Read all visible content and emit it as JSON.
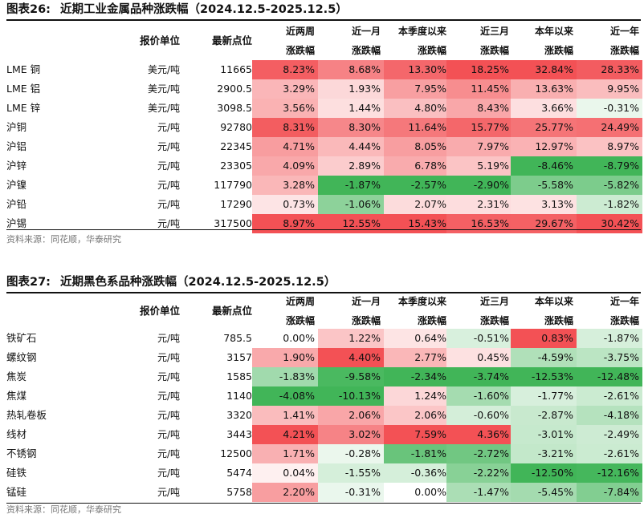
{
  "tables": [
    {
      "label": "图表26:",
      "title": "近期工业金属品种涨跌幅（2024.12.5-2025.12.5）",
      "col_unit": "报价单位",
      "col_price": "最新点位",
      "period_headers": [
        [
          "近两周",
          "涨跌幅"
        ],
        [
          "近一月",
          "涨跌幅"
        ],
        [
          "本季度以来",
          "涨跌幅"
        ],
        [
          "近三月",
          "涨跌幅"
        ],
        [
          "本年以来",
          "涨跌幅"
        ],
        [
          "近一年",
          "涨跌幅"
        ]
      ],
      "rows": [
        {
          "name": "LME 铜",
          "unit": "美元/吨",
          "price": "11665",
          "values": [
            "8.23%",
            "8.68%",
            "13.30%",
            "18.25%",
            "32.84%",
            "28.33%"
          ]
        },
        {
          "name": "LME 铝",
          "unit": "美元/吨",
          "price": "2900.5",
          "values": [
            "3.29%",
            "1.93%",
            "7.95%",
            "11.45%",
            "13.63%",
            "9.95%"
          ]
        },
        {
          "name": "LME 锌",
          "unit": "美元/吨",
          "price": "3098.5",
          "values": [
            "3.56%",
            "1.44%",
            "4.80%",
            "8.43%",
            "3.66%",
            "-0.31%"
          ]
        },
        {
          "name": "沪铜",
          "unit": "元/吨",
          "price": "92780",
          "values": [
            "8.31%",
            "8.30%",
            "11.64%",
            "15.77%",
            "25.77%",
            "24.49%"
          ]
        },
        {
          "name": "沪铝",
          "unit": "元/吨",
          "price": "22345",
          "values": [
            "4.71%",
            "4.44%",
            "8.05%",
            "7.97%",
            "12.97%",
            "8.97%"
          ]
        },
        {
          "name": "沪锌",
          "unit": "元/吨",
          "price": "23305",
          "values": [
            "4.09%",
            "2.89%",
            "6.78%",
            "5.19%",
            "-8.46%",
            "-8.79%"
          ]
        },
        {
          "name": "沪镍",
          "unit": "元/吨",
          "price": "117790",
          "values": [
            "3.28%",
            "-1.87%",
            "-2.57%",
            "-2.90%",
            "-5.58%",
            "-5.82%"
          ]
        },
        {
          "name": "沪铅",
          "unit": "元/吨",
          "price": "17290",
          "values": [
            "0.73%",
            "-1.06%",
            "2.07%",
            "2.31%",
            "3.13%",
            "-1.82%"
          ]
        },
        {
          "name": "沪锡",
          "unit": "元/吨",
          "price": "317500",
          "values": [
            "8.97%",
            "12.55%",
            "15.43%",
            "16.53%",
            "29.67%",
            "30.42%"
          ]
        }
      ],
      "source": "资料来源：同花顺，华泰研究"
    },
    {
      "label": "图表27:",
      "title": "近期黑色系品种涨跌幅（2024.12.5-2025.12.5）",
      "col_unit": "报价单位",
      "col_price": "最新点位",
      "period_headers": [
        [
          "近两周",
          "涨跌幅"
        ],
        [
          "近一月",
          "涨跌幅"
        ],
        [
          "本季度以来",
          "涨跌幅"
        ],
        [
          "近三月",
          "涨跌幅"
        ],
        [
          "本年以来",
          "涨跌幅"
        ],
        [
          "近一年",
          "涨跌幅"
        ]
      ],
      "rows": [
        {
          "name": "铁矿石",
          "unit": "元/吨",
          "price": "785.5",
          "values": [
            "0.00%",
            "1.22%",
            "0.64%",
            "-0.51%",
            "0.83%",
            "-1.87%"
          ]
        },
        {
          "name": "螺纹钢",
          "unit": "元/吨",
          "price": "3157",
          "values": [
            "1.90%",
            "4.40%",
            "2.77%",
            "0.45%",
            "-4.59%",
            "-3.75%"
          ]
        },
        {
          "name": "焦炭",
          "unit": "元/吨",
          "price": "1585",
          "values": [
            "-1.83%",
            "-9.58%",
            "-2.34%",
            "-3.74%",
            "-12.53%",
            "-12.48%"
          ]
        },
        {
          "name": "焦煤",
          "unit": "元/吨",
          "price": "1140",
          "values": [
            "-4.08%",
            "-10.13%",
            "1.24%",
            "-1.60%",
            "-1.77%",
            "-2.61%"
          ]
        },
        {
          "name": "热轧卷板",
          "unit": "元/吨",
          "price": "3320",
          "values": [
            "1.41%",
            "2.06%",
            "2.06%",
            "-0.60%",
            "-2.87%",
            "-4.18%"
          ]
        },
        {
          "name": "线材",
          "unit": "元/吨",
          "price": "3443",
          "values": [
            "4.21%",
            "3.02%",
            "7.59%",
            "4.36%",
            "-3.01%",
            "-2.49%"
          ]
        },
        {
          "name": "不锈钢",
          "unit": "元/吨",
          "price": "12500",
          "values": [
            "1.71%",
            "-0.28%",
            "-1.81%",
            "-2.72%",
            "-3.21%",
            "-2.61%"
          ]
        },
        {
          "name": "硅铁",
          "unit": "元/吨",
          "price": "5474",
          "values": [
            "0.04%",
            "-1.55%",
            "-0.36%",
            "-2.22%",
            "-12.50%",
            "-12.16%"
          ]
        },
        {
          "name": "锰硅",
          "unit": "元/吨",
          "price": "5758",
          "values": [
            "2.20%",
            "-0.31%",
            "0.00%",
            "-1.47%",
            "-5.45%",
            "-7.84%"
          ]
        }
      ],
      "source": "资料来源：同花顺，华泰研究"
    }
  ],
  "colors": {
    "positive": "#f2484c",
    "negative": "#37b14f",
    "neutral": "#ffffff"
  }
}
